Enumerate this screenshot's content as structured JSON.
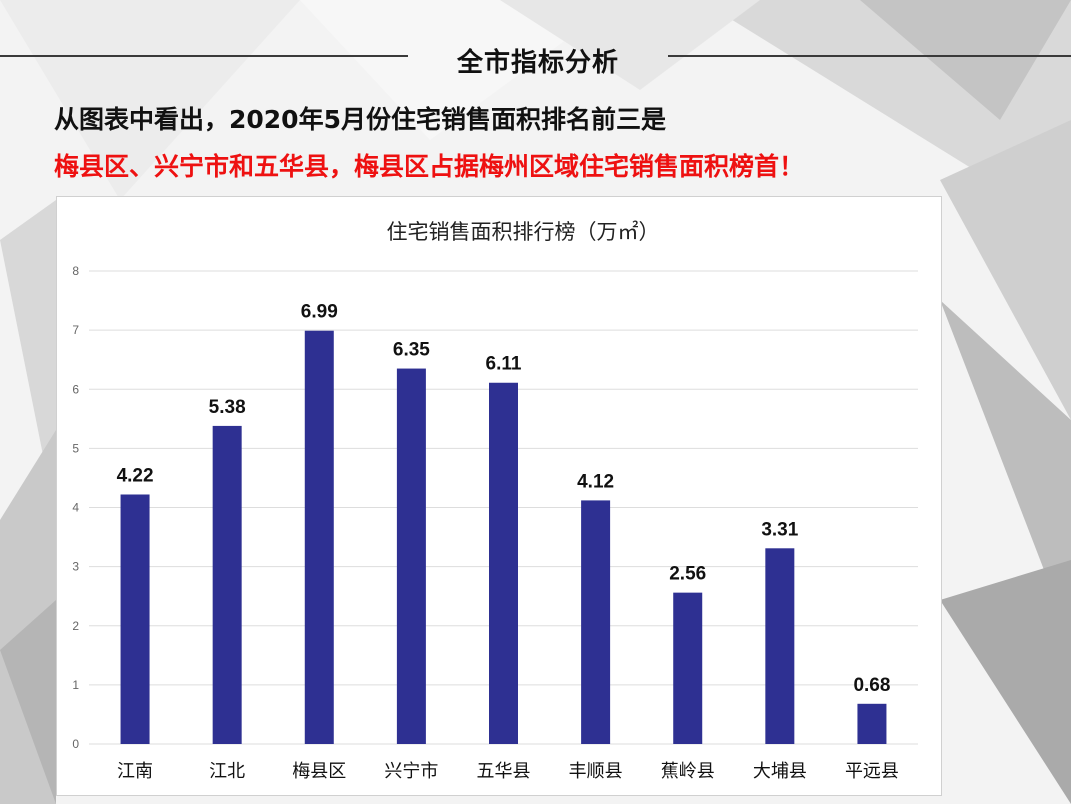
{
  "header": {
    "section_title": "全市指标分析"
  },
  "summary": {
    "line1": "从图表中看出，2020年5月份住宅销售面积排名前三是",
    "line2": "梅县区、兴宁市和五华县，梅县区占据梅州区域住宅销售面积榜首！"
  },
  "colors": {
    "bar": "#2E3092",
    "highlight": "#EE1111",
    "gridline": "#DDDDDD"
  },
  "chart_data": {
    "type": "bar",
    "title": "住宅销售面积排行榜（万㎡）",
    "xlabel": "",
    "ylabel": "",
    "categories": [
      "江南",
      "江北",
      "梅县区",
      "兴宁市",
      "五华县",
      "丰顺县",
      "蕉岭县",
      "大埔县",
      "平远县"
    ],
    "values": [
      4.22,
      5.38,
      6.99,
      6.35,
      6.11,
      4.12,
      2.56,
      3.31,
      0.68
    ],
    "value_labels": [
      "4.22",
      "5.38",
      "6.99",
      "6.35",
      "6.11",
      "4.12",
      "2.56",
      "3.31",
      "0.68"
    ],
    "ylim": [
      0,
      8
    ],
    "yticks": [
      0,
      1,
      2,
      3,
      4,
      5,
      6,
      7,
      8
    ],
    "ytick_labels": [
      "0",
      "1",
      "2",
      "3",
      "4",
      "5",
      "6",
      "7",
      "8"
    ],
    "grid": true,
    "legend": "none"
  }
}
